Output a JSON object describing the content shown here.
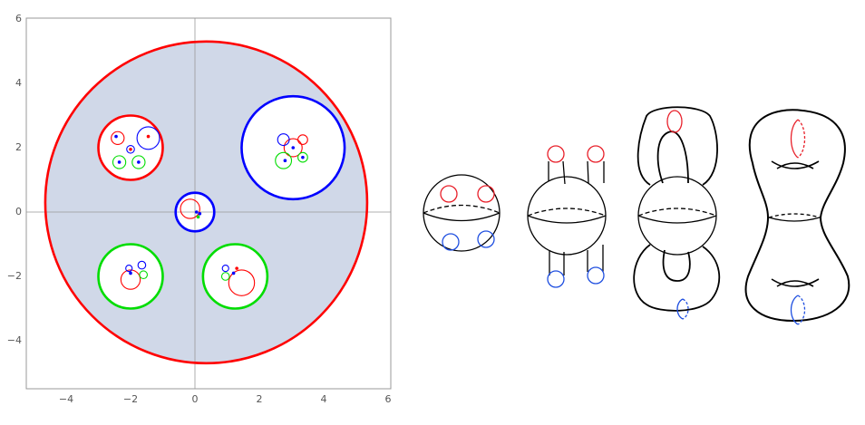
{
  "chart_data": {
    "type": "scatter",
    "title": "",
    "xlabel": "",
    "ylabel": "",
    "xlim": [
      -5.3,
      6.2
    ],
    "ylim": [
      -5.5,
      6.1
    ],
    "x_ticks": [
      "−4",
      "−2",
      "0",
      "2",
      "4",
      "6"
    ],
    "y_ticks": [
      "6",
      "4",
      "2",
      "0",
      "−2",
      "−4"
    ],
    "fill_color": "#d0d8e8",
    "circles": [
      {
        "cx": 0.35,
        "cy": 0.3,
        "r": 5.0,
        "color": "#ff0000"
      },
      {
        "cx": 3.05,
        "cy": 2.0,
        "r": 1.6,
        "color": "#0000ff"
      },
      {
        "cx": -2.0,
        "cy": 2.0,
        "r": 1.0,
        "color": "#ff0000"
      },
      {
        "cx": 0.0,
        "cy": 0.0,
        "r": 0.6,
        "color": "#0000ff"
      },
      {
        "cx": -2.0,
        "cy": -2.0,
        "r": 1.0,
        "color": "#00dd00"
      },
      {
        "cx": 1.25,
        "cy": -2.0,
        "r": 1.0,
        "color": "#00dd00"
      },
      {
        "cx": -1.45,
        "cy": 2.3,
        "r": 0.35,
        "color": "#0000ff"
      },
      {
        "cx": -2.4,
        "cy": 2.3,
        "r": 0.2,
        "color": "#ff0000"
      },
      {
        "cx": -2.35,
        "cy": 1.55,
        "r": 0.2,
        "color": "#00dd00"
      },
      {
        "cx": -1.75,
        "cy": 1.55,
        "r": 0.2,
        "color": "#00dd00"
      },
      {
        "cx": -2.0,
        "cy": 1.95,
        "r": 0.12,
        "color": "#0000ff"
      },
      {
        "cx": 3.05,
        "cy": 2.0,
        "r": 0.28,
        "color": "#ff0000"
      },
      {
        "cx": 2.75,
        "cy": 2.25,
        "r": 0.18,
        "color": "#0000ff"
      },
      {
        "cx": 3.35,
        "cy": 2.25,
        "r": 0.15,
        "color": "#ff0000"
      },
      {
        "cx": 2.75,
        "cy": 1.6,
        "r": 0.25,
        "color": "#00dd00"
      },
      {
        "cx": 3.35,
        "cy": 1.7,
        "r": 0.15,
        "color": "#00dd00"
      },
      {
        "cx": -0.15,
        "cy": 0.1,
        "r": 0.3,
        "color": "#ff0000"
      },
      {
        "cx": -2.0,
        "cy": -2.1,
        "r": 0.3,
        "color": "#ff0000"
      },
      {
        "cx": -1.65,
        "cy": -1.65,
        "r": 0.12,
        "color": "#0000ff"
      },
      {
        "cx": -2.05,
        "cy": -1.75,
        "r": 0.1,
        "color": "#0000ff"
      },
      {
        "cx": -1.6,
        "cy": -1.95,
        "r": 0.12,
        "color": "#00dd00"
      },
      {
        "cx": 1.45,
        "cy": -2.2,
        "r": 0.4,
        "color": "#ff0000"
      },
      {
        "cx": 0.95,
        "cy": -1.75,
        "r": 0.1,
        "color": "#0000ff"
      },
      {
        "cx": 0.95,
        "cy": -2.0,
        "r": 0.12,
        "color": "#00dd00"
      }
    ],
    "points": [
      {
        "x": -2.45,
        "y": 2.35,
        "color": "#0000ff"
      },
      {
        "x": -1.45,
        "y": 2.35,
        "color": "#ff0000"
      },
      {
        "x": -2.35,
        "y": 1.55,
        "color": "#0000ff"
      },
      {
        "x": -1.75,
        "y": 1.55,
        "color": "#0000ff"
      },
      {
        "x": -2.0,
        "y": 1.95,
        "color": "#ff0000"
      },
      {
        "x": 3.05,
        "y": 2.0,
        "color": "#0000ff"
      },
      {
        "x": 2.8,
        "y": 1.6,
        "color": "#0000ff"
      },
      {
        "x": 3.35,
        "y": 1.7,
        "color": "#0000ff"
      },
      {
        "x": 0.05,
        "y": 0.0,
        "color": "#0000ff"
      },
      {
        "x": 0.15,
        "y": -0.05,
        "color": "#0000ff"
      },
      {
        "x": 0.1,
        "y": -0.15,
        "color": "#00dd00"
      },
      {
        "x": -2.0,
        "y": -1.9,
        "color": "#0000ff"
      },
      {
        "x": 1.2,
        "y": -1.9,
        "color": "#0000ff"
      },
      {
        "x": 1.3,
        "y": -1.75,
        "color": "#ff0000"
      }
    ]
  },
  "topology": {
    "red": "#e8202a",
    "blue": "#1f4fe0",
    "stroke": "#000000",
    "figures": [
      "sphere-with-boundary-circles",
      "sphere-with-tubes",
      "genus-surface-with-handles",
      "smoothed-surface"
    ]
  }
}
